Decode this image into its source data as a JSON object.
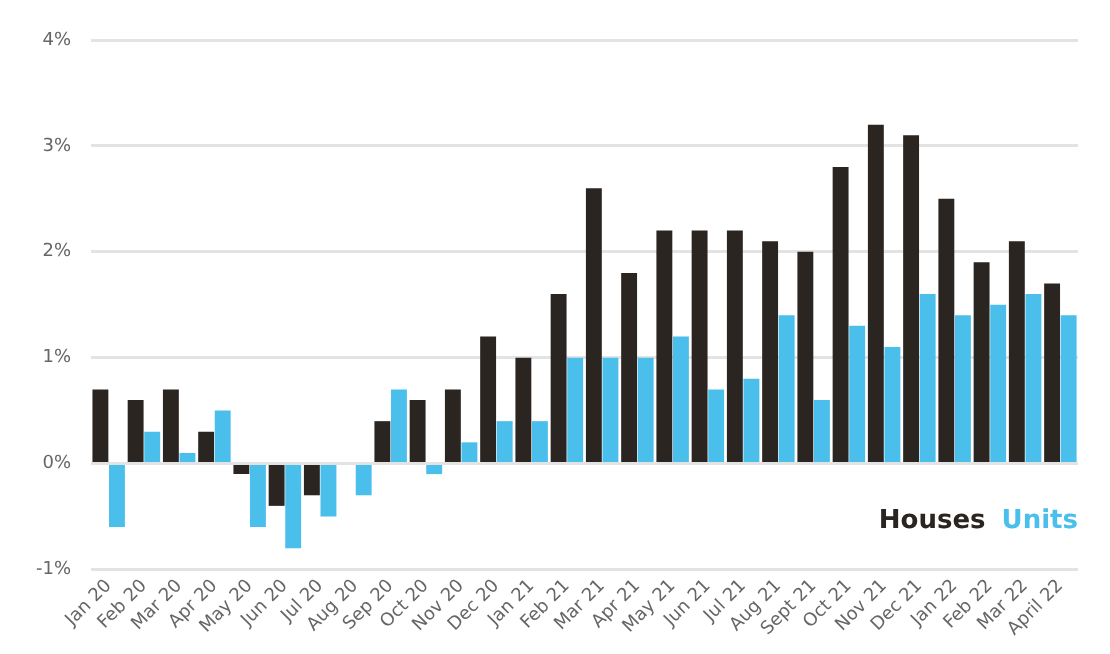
{
  "chart_data": {
    "type": "bar",
    "categories": [
      "Jan 20",
      "Feb 20",
      "Mar 20",
      "Apr 20",
      "May 20",
      "Jun 20",
      "Jul 20",
      "Aug 20",
      "Sep 20",
      "Oct 20",
      "Nov 20",
      "Dec 20",
      "Jan 21",
      "Feb 21",
      "Mar 21",
      "Apr 21",
      "May 21",
      "Jun 21",
      "Jul 21",
      "Aug 21",
      "Sept 21",
      "Oct 21",
      "Nov 21",
      "Dec 21",
      "Jan 22",
      "Feb 22",
      "Mar 22",
      "April 22"
    ],
    "series": [
      {
        "name": "Houses",
        "color": "#2b2522",
        "values": [
          0.7,
          0.6,
          0.7,
          0.3,
          -0.1,
          -0.4,
          -0.3,
          0,
          0.4,
          0.6,
          0.7,
          1.2,
          1.0,
          1.6,
          2.6,
          1.8,
          2.2,
          2.2,
          2.2,
          2.1,
          2.0,
          2.8,
          3.2,
          3.1,
          2.5,
          1.9,
          2.1,
          1.7
        ]
      },
      {
        "name": "Units",
        "color": "#4bbfec",
        "values": [
          -0.6,
          0.3,
          0.1,
          0.5,
          -0.6,
          -0.8,
          -0.5,
          -0.3,
          0.7,
          -0.1,
          0.2,
          0.4,
          0.4,
          1.0,
          1.0,
          1.0,
          1.2,
          0.7,
          0.8,
          1.4,
          0.6,
          1.3,
          1.1,
          1.6,
          1.4,
          1.5,
          1.6,
          1.4
        ]
      }
    ],
    "ylim": [
      -1,
      4
    ],
    "yticks": [
      {
        "value": -1,
        "label": "-1%"
      },
      {
        "value": 0,
        "label": "0%"
      },
      {
        "value": 1,
        "label": "1%"
      },
      {
        "value": 2,
        "label": "2%"
      },
      {
        "value": 3,
        "label": "3%"
      },
      {
        "value": 4,
        "label": "4%"
      }
    ],
    "grid": "y",
    "legend": "bottom right"
  }
}
